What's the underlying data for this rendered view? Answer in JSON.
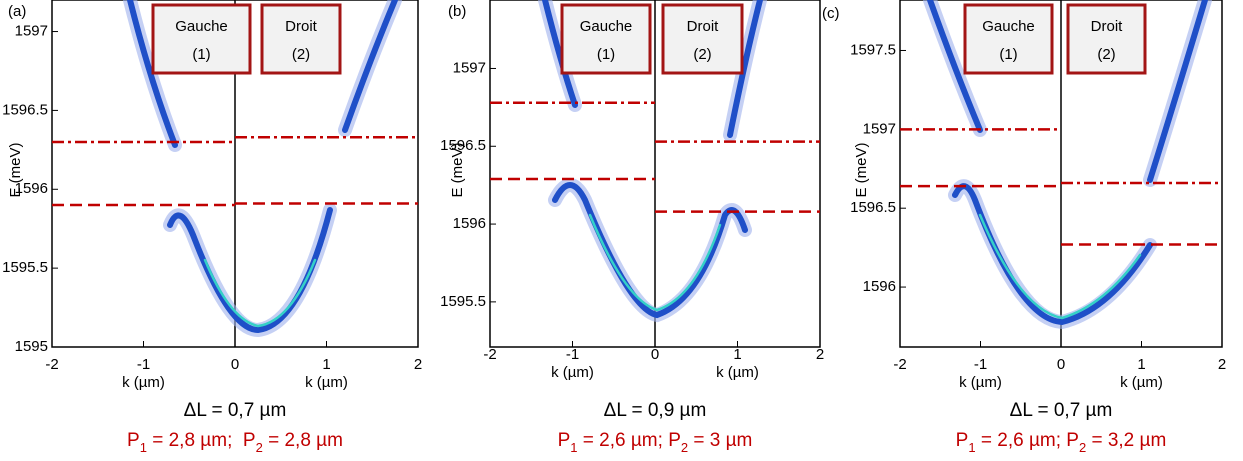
{
  "panels": [
    {
      "letter": "(a)",
      "ylabel": "E (meV)",
      "xlabel_left": "k (µm)",
      "xlabel_right": "k (µm)",
      "xlim": [
        -2,
        2
      ],
      "ylim": [
        1595,
        1597.2
      ],
      "xticks": [
        -2,
        -1,
        0,
        1,
        2
      ],
      "yticks": [
        1595,
        1595.5,
        1596,
        1596.5,
        1597
      ],
      "left_box": [
        "Gauche",
        "(1)"
      ],
      "right_box": [
        "Droit",
        "(2)"
      ],
      "levels": {
        "left_dashdot": 1596.3,
        "right_dashdot": 1596.33,
        "left_dashed": 1595.9,
        "right_dashed": 1595.91
      },
      "caption": "ΔL = 0,7 µm",
      "periods": [
        {
          "text": "P"
        },
        {
          "sub": "1"
        },
        {
          "text": " = 2,8 µm;  P"
        },
        {
          "sub": "2"
        },
        {
          "text": " = 2,8 µm"
        }
      ]
    },
    {
      "letter": "(b)",
      "ylabel": "E (meV)",
      "xlabel_left": "k (µm)",
      "xlabel_right": "k (µm)",
      "xlim": [
        -2,
        2
      ],
      "ylim": [
        1595.21,
        1597.44
      ],
      "xticks": [
        -2,
        -1,
        0,
        1,
        2
      ],
      "yticks": [
        1595.5,
        1596,
        1596.5,
        1597
      ],
      "left_box": [
        "Gauche",
        "(1)"
      ],
      "right_box": [
        "Droit",
        "(2)"
      ],
      "levels": {
        "left_dashdot": 1596.78,
        "right_dashdot": 1596.53,
        "left_dashed": 1596.29,
        "right_dashed": 1596.08
      },
      "caption": "ΔL = 0,9 µm",
      "periods": [
        {
          "text": "P"
        },
        {
          "sub": "1"
        },
        {
          "text": " = 2,6 µm; P"
        },
        {
          "sub": "2"
        },
        {
          "text": " = 3 µm"
        }
      ]
    },
    {
      "letter": "(c)",
      "ylabel": "E (meV)",
      "xlabel_left": "k (µm)",
      "xlabel_right": "k (µm)",
      "xlim": [
        -2,
        2
      ],
      "ylim": [
        1595.62,
        1597.82
      ],
      "xticks": [
        -2,
        -1,
        0,
        1,
        2
      ],
      "yticks": [
        1596,
        1596.5,
        1597,
        1597.5
      ],
      "left_box": [
        "Gauche",
        "(1)"
      ],
      "right_box": [
        "Droit",
        "(2)"
      ],
      "levels": {
        "left_dashdot": 1597,
        "right_dashdot": 1596.66,
        "left_dashed": 1596.64,
        "right_dashed": 1596.27
      },
      "caption": "ΔL = 0,7 µm",
      "periods": [
        {
          "text": "P"
        },
        {
          "sub": "1"
        },
        {
          "text": " = 2,6 µm; P"
        },
        {
          "sub": "2"
        },
        {
          "text": " = 3,2 µm"
        }
      ]
    }
  ]
}
